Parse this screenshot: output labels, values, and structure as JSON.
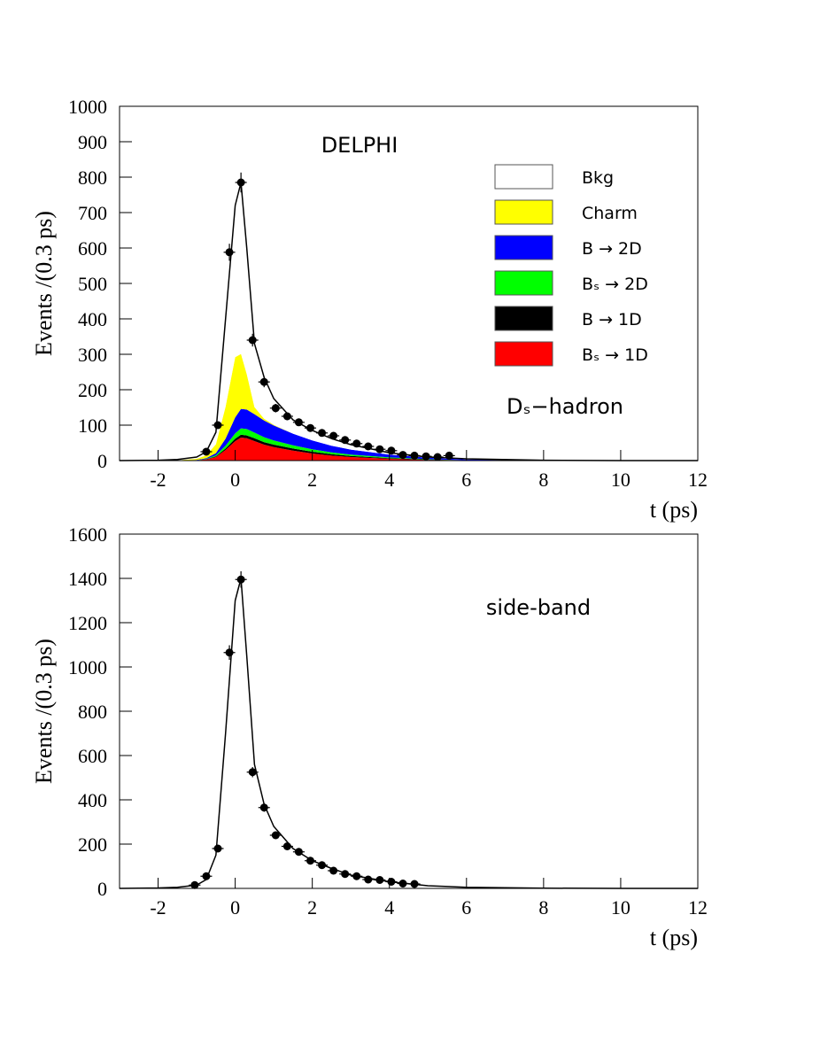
{
  "chart_data": [
    {
      "type": "stacked_area",
      "ylabel": "Events /(0.3 ps)",
      "xlabel": "t (ps)",
      "annotations": [
        "DELPHI",
        "Dₛ−hadron"
      ],
      "xlim": [
        -3,
        12
      ],
      "xticks": [
        -2,
        0,
        2,
        4,
        6,
        8,
        10,
        12
      ],
      "ylim": [
        0,
        1000
      ],
      "yticks": [
        0,
        100,
        200,
        300,
        400,
        500,
        600,
        700,
        800,
        900,
        1000
      ],
      "x": [
        -3,
        -2,
        -1.5,
        -1,
        -0.75,
        -0.5,
        -0.25,
        0,
        0.15,
        0.3,
        0.5,
        0.75,
        1,
        1.5,
        2,
        2.5,
        3,
        4,
        5,
        6,
        8,
        10,
        12
      ],
      "series": [
        {
          "name": "Bₛ → 1D",
          "color": "#ff0000",
          "values": [
            0,
            0,
            0,
            1,
            3,
            10,
            30,
            55,
            65,
            63,
            55,
            45,
            38,
            28,
            20,
            14,
            10,
            5,
            2,
            1,
            0,
            0,
            0
          ]
        },
        {
          "name": "B → 1D",
          "color": "#000000",
          "values": [
            0,
            0,
            0,
            0,
            1,
            2,
            4,
            7,
            8,
            8,
            8,
            7,
            7,
            6,
            5,
            4,
            3,
            2,
            1,
            0,
            0,
            0,
            0
          ]
        },
        {
          "name": "Bₛ → 2D",
          "color": "#00ff00",
          "values": [
            0,
            0,
            0,
            0,
            1,
            3,
            8,
            15,
            18,
            18,
            16,
            14,
            12,
            9,
            7,
            5,
            4,
            2,
            1,
            0,
            0,
            0,
            0
          ]
        },
        {
          "name": "B → 2D",
          "color": "#0000ff",
          "values": [
            0,
            0,
            0,
            1,
            2,
            6,
            20,
            45,
            55,
            55,
            52,
            47,
            42,
            33,
            25,
            19,
            14,
            8,
            4,
            2,
            1,
            0,
            0
          ]
        },
        {
          "name": "Charm",
          "color": "#ffff00",
          "values": [
            0,
            0,
            1,
            3,
            8,
            25,
            90,
            170,
            155,
            100,
            20,
            5,
            2,
            0,
            0,
            0,
            0,
            0,
            0,
            0,
            0,
            0,
            0
          ]
        },
        {
          "name": "Bkg",
          "color": "#ffffff",
          "values": [
            0,
            1,
            2,
            5,
            10,
            34,
            248,
            428,
            484,
            356,
            179,
            117,
            74,
            39,
            28,
            20,
            14,
            5,
            2,
            2,
            0,
            0,
            0
          ]
        }
      ],
      "points": {
        "xerr": 0.15,
        "x": [
          -0.75,
          -0.45,
          -0.15,
          0.15,
          0.45,
          0.75,
          1.05,
          1.35,
          1.65,
          1.95,
          2.25,
          2.55,
          2.85,
          3.15,
          3.45,
          3.75,
          4.05,
          4.35,
          4.65,
          4.95,
          5.25,
          5.55
        ],
        "values": [
          25,
          100,
          588,
          785,
          340,
          222,
          148,
          125,
          108,
          92,
          78,
          70,
          58,
          48,
          40,
          32,
          28,
          16,
          14,
          12,
          10,
          14
        ],
        "yerr": [
          5,
          10,
          24,
          28,
          18,
          15,
          12,
          11,
          10,
          10,
          9,
          8,
          8,
          7,
          6,
          6,
          5,
          4,
          4,
          3,
          3,
          4
        ]
      }
    },
    {
      "type": "line",
      "ylabel": "Events /(0.3 ps)",
      "xlabel": "t (ps)",
      "annotations": [
        "side-band"
      ],
      "xlim": [
        -3,
        12
      ],
      "xticks": [
        -2,
        0,
        2,
        4,
        6,
        8,
        10,
        12
      ],
      "ylim": [
        0,
        1600
      ],
      "yticks": [
        0,
        200,
        400,
        600,
        800,
        1000,
        1200,
        1400,
        1600
      ],
      "x": [
        -3,
        -2,
        -1.5,
        -1,
        -0.75,
        -0.5,
        -0.25,
        0,
        0.15,
        0.3,
        0.5,
        0.75,
        1,
        1.5,
        2,
        2.5,
        3,
        4,
        5,
        6,
        8,
        10,
        12
      ],
      "values": [
        0,
        2,
        5,
        15,
        40,
        150,
        700,
        1300,
        1400,
        1050,
        560,
        380,
        280,
        180,
        125,
        90,
        60,
        30,
        12,
        5,
        1,
        0,
        0
      ],
      "points": {
        "xerr": 0.15,
        "x": [
          -1.05,
          -0.75,
          -0.45,
          -0.15,
          0.15,
          0.45,
          0.75,
          1.05,
          1.35,
          1.65,
          1.95,
          2.25,
          2.55,
          2.85,
          3.15,
          3.45,
          3.75,
          4.05,
          4.35,
          4.65
        ],
        "values": [
          15,
          55,
          180,
          1065,
          1395,
          525,
          365,
          240,
          190,
          165,
          125,
          105,
          80,
          65,
          55,
          40,
          38,
          30,
          22,
          20
        ],
        "yerr": [
          4,
          7,
          13,
          33,
          37,
          23,
          19,
          15,
          14,
          13,
          11,
          10,
          9,
          8,
          7,
          6,
          6,
          5,
          5,
          4
        ]
      }
    }
  ]
}
